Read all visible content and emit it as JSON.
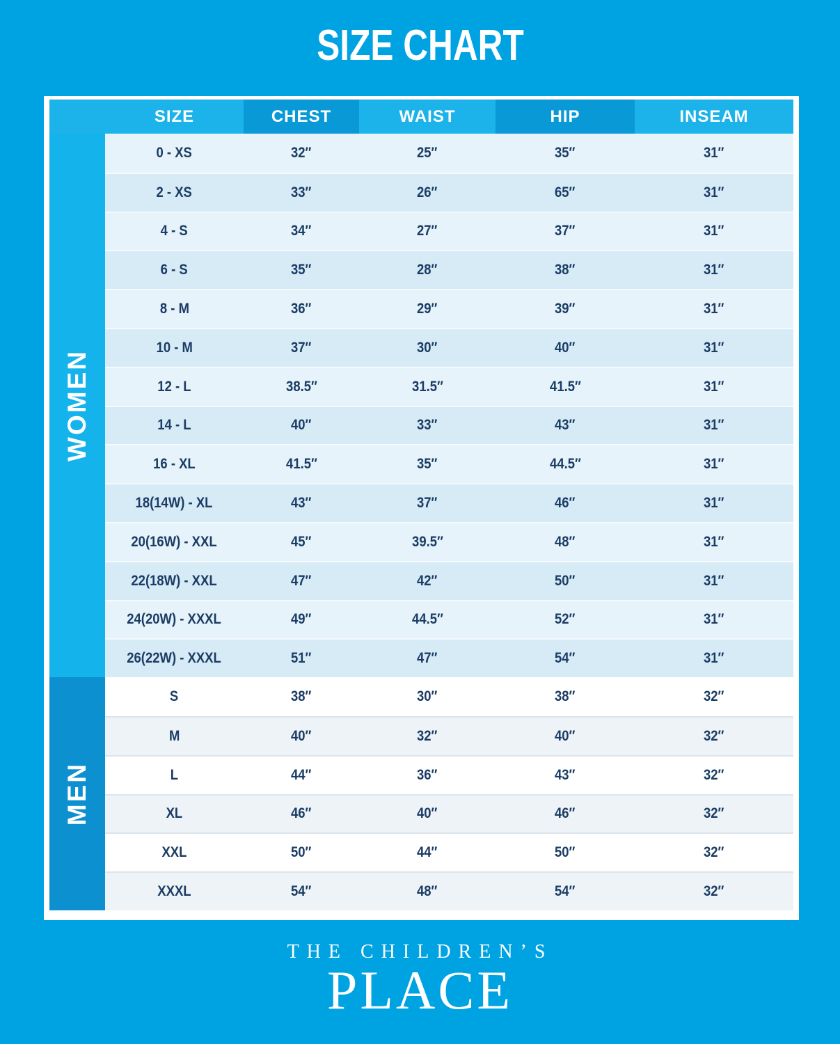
{
  "title": "SIZE CHART",
  "chart_data": {
    "type": "table",
    "title": "SIZE CHART",
    "columns": [
      "SIZE",
      "CHEST",
      "WAIST",
      "HIP",
      "INSEAM"
    ],
    "sections": [
      {
        "group": "WOMEN",
        "rows": [
          [
            "0 - XS",
            "32″",
            "25″",
            "35″",
            "31″"
          ],
          [
            "2 - XS",
            "33″",
            "26″",
            "65″",
            "31″"
          ],
          [
            "4 - S",
            "34″",
            "27″",
            "37″",
            "31″"
          ],
          [
            "6 - S",
            "35″",
            "28″",
            "38″",
            "31″"
          ],
          [
            "8 - M",
            "36″",
            "29″",
            "39″",
            "31″"
          ],
          [
            "10 - M",
            "37″",
            "30″",
            "40″",
            "31″"
          ],
          [
            "12 - L",
            "38.5″",
            "31.5″",
            "41.5″",
            "31″"
          ],
          [
            "14 - L",
            "40″",
            "33″",
            "43″",
            "31″"
          ],
          [
            "16 - XL",
            "41.5″",
            "35″",
            "44.5″",
            "31″"
          ],
          [
            "18(14W) - XL",
            "43″",
            "37″",
            "46″",
            "31″"
          ],
          [
            "20(16W) - XXL",
            "45″",
            "39.5″",
            "48″",
            "31″"
          ],
          [
            "22(18W) - XXL",
            "47″",
            "42″",
            "50″",
            "31″"
          ],
          [
            "24(20W) - XXXL",
            "49″",
            "44.5″",
            "52″",
            "31″"
          ],
          [
            "26(22W) - XXXL",
            "51″",
            "47″",
            "54″",
            "31″"
          ]
        ]
      },
      {
        "group": "MEN",
        "rows": [
          [
            "S",
            "38″",
            "30″",
            "38″",
            "32″"
          ],
          [
            "M",
            "40″",
            "32″",
            "40″",
            "32″"
          ],
          [
            "L",
            "44″",
            "36″",
            "43″",
            "32″"
          ],
          [
            "XL",
            "46″",
            "40″",
            "46″",
            "32″"
          ],
          [
            "XXL",
            "50″",
            "44″",
            "50″",
            "32″"
          ],
          [
            "XXXL",
            "54″",
            "48″",
            "54″",
            "32″"
          ]
        ]
      }
    ]
  },
  "footer": {
    "line1": "THE CHILDREN’S",
    "line2": "PLACE"
  },
  "colors": {
    "background": "#00A3E2",
    "header_light": "#1CB2EA",
    "header_dark": "#0999D7",
    "women_strip": "#14B3EB",
    "men_strip": "#0C90D0",
    "women_row_a": "#E6F3FB",
    "women_row_b": "#D7EBF7",
    "men_row_a": "#FFFFFF",
    "men_row_b": "#EDF3F7",
    "text": "#1B3C64"
  }
}
